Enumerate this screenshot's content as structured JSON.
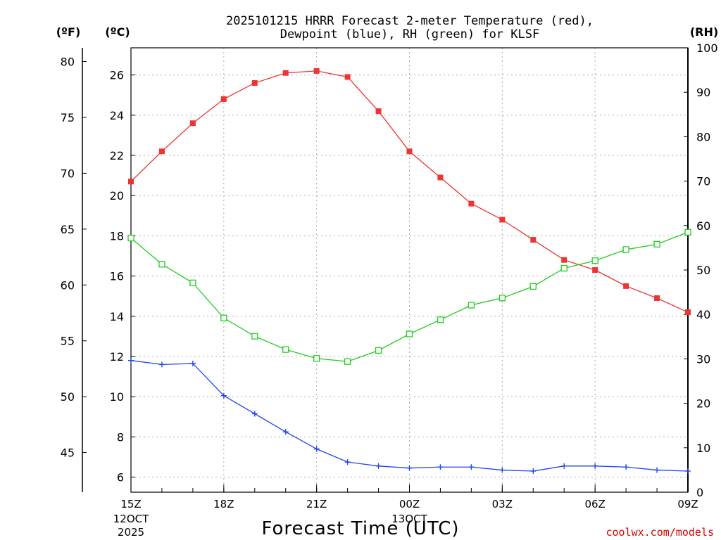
{
  "chart_data": {
    "type": "line",
    "title_line1": "2025101215 HRRR Forecast 2-meter Temperature (red),",
    "title_line2": "Dewpoint (blue), RH (green) for KLSF",
    "unit_f": "(ºF)",
    "unit_c": "(ºC)",
    "unit_rh": "(RH)",
    "xlabel": "Forecast Time (UTC)",
    "credit": "coolwx.com/models",
    "x_hours": [
      0,
      1,
      2,
      3,
      4,
      5,
      6,
      7,
      8,
      9,
      10,
      11,
      12,
      13,
      14,
      15,
      16,
      17,
      18
    ],
    "x_ticks": [
      {
        "hour": 0,
        "label": "15Z",
        "sub1": "12OCT",
        "sub2": "2025"
      },
      {
        "hour": 3,
        "label": "18Z",
        "sub1": "",
        "sub2": ""
      },
      {
        "hour": 6,
        "label": "21Z",
        "sub1": "",
        "sub2": ""
      },
      {
        "hour": 9,
        "label": "00Z",
        "sub1": "13OCT",
        "sub2": ""
      },
      {
        "hour": 12,
        "label": "03Z",
        "sub1": "",
        "sub2": ""
      },
      {
        "hour": 15,
        "label": "06Z",
        "sub1": "",
        "sub2": ""
      },
      {
        "hour": 18,
        "label": "09Z",
        "sub1": "",
        "sub2": ""
      }
    ],
    "c_range": [
      5.25,
      27.35
    ],
    "c_ticks": [
      6,
      8,
      10,
      12,
      14,
      16,
      18,
      20,
      22,
      24,
      26
    ],
    "f_ticks": [
      45,
      50,
      55,
      60,
      65,
      70,
      75,
      80
    ],
    "rh_range": [
      0,
      100
    ],
    "rh_ticks": [
      0,
      10,
      20,
      30,
      40,
      50,
      60,
      70,
      80,
      90,
      100
    ],
    "series": [
      {
        "name": "Temperature",
        "color": "#ee3333",
        "axis": "c",
        "marker": "square-filled",
        "values": [
          20.7,
          22.2,
          23.6,
          24.8,
          25.6,
          26.1,
          26.2,
          25.9,
          24.2,
          22.2,
          20.9,
          19.6,
          18.8,
          17.8,
          16.8,
          16.3,
          15.5,
          14.9,
          14.2
        ]
      },
      {
        "name": "Dewpoint",
        "color": "#2244ee",
        "axis": "c",
        "marker": "plus",
        "values": [
          11.8,
          11.6,
          11.65,
          10.05,
          9.15,
          8.25,
          7.4,
          6.75,
          6.55,
          6.45,
          6.5,
          6.5,
          6.35,
          6.3,
          6.55,
          6.55,
          6.5,
          6.35,
          6.3
        ]
      },
      {
        "name": "RH",
        "color": "#22cc22",
        "axis": "rh",
        "marker": "square-open",
        "values": [
          57.2,
          51.3,
          47.1,
          39.2,
          35.1,
          32.1,
          30.1,
          29.4,
          31.9,
          35.6,
          38.8,
          42.1,
          43.7,
          46.3,
          50.4,
          52.1,
          54.6,
          55.8,
          58.5
        ]
      }
    ]
  }
}
